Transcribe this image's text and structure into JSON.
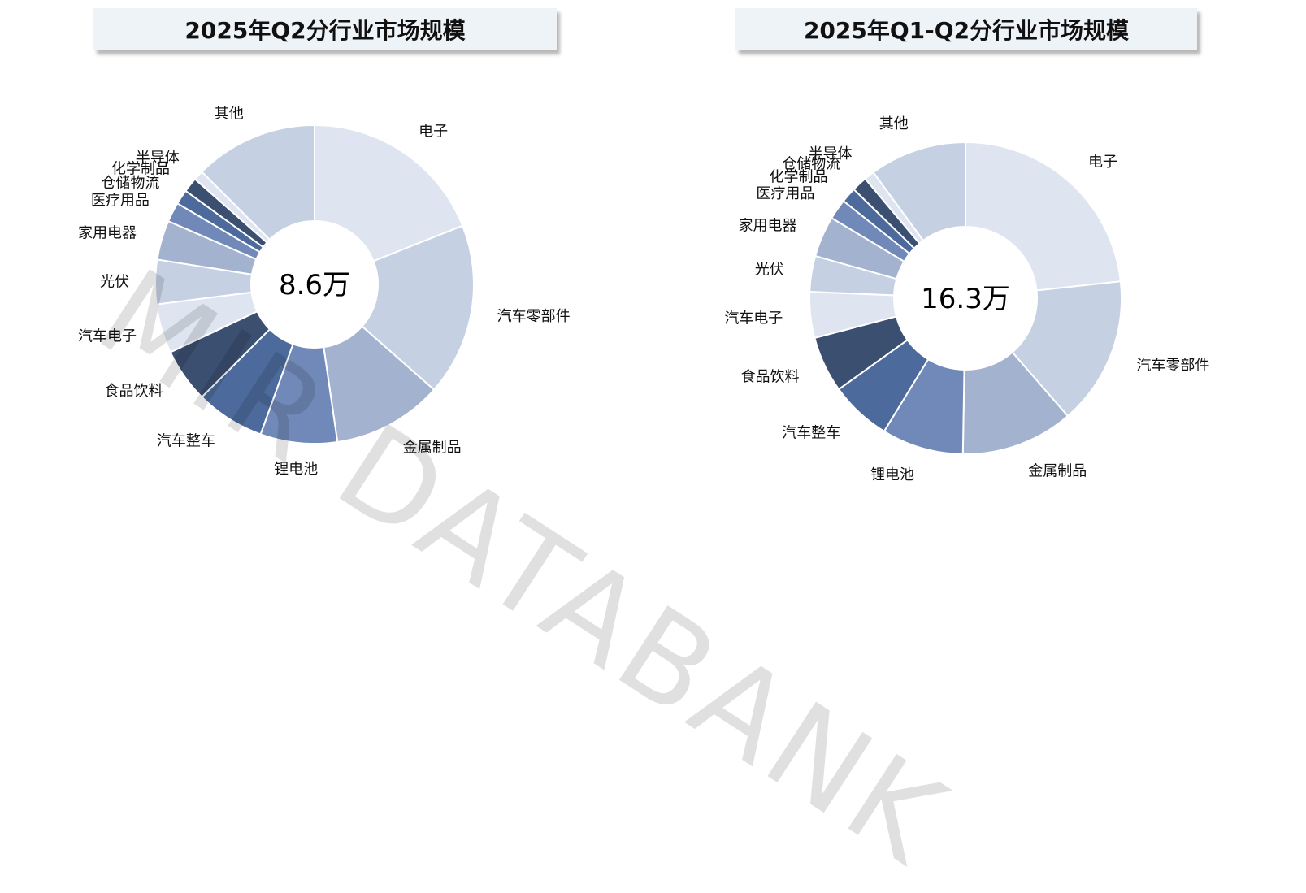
{
  "chart_data": [
    {
      "type": "pie",
      "title": "2025年Q2分行业市场规模",
      "center_label": "8.6万",
      "categories": [
        "电子",
        "汽车零部件",
        "金属制品",
        "锂电池",
        "汽车整车",
        "食品饮料",
        "汽车电子",
        "光伏",
        "家用电器",
        "医疗用品",
        "仓储物流",
        "化学制品",
        "半导体",
        "其他"
      ],
      "values": [
        19.0,
        17.5,
        11.2,
        7.8,
        7.0,
        5.5,
        5.0,
        4.5,
        4.0,
        2.0,
        1.5,
        1.5,
        1.0,
        12.5
      ],
      "colors": [
        "#dfe5f0",
        "#c5d0e2",
        "#a3b2cf",
        "#7089b8",
        "#4d6a9c",
        "#3b4f70",
        "#dfe5f0",
        "#c5d0e2",
        "#a3b2cf",
        "#7089b8",
        "#4d6a9c",
        "#3b4f70",
        "#dfe5f0",
        "#c5d0e2"
      ]
    },
    {
      "type": "pie",
      "title": "2025年Q1-Q2分行业市场规模",
      "center_label": "16.3万",
      "categories": [
        "电子",
        "汽车零部件",
        "金属制品",
        "锂电池",
        "汽车整车",
        "食品饮料",
        "汽车电子",
        "光伏",
        "家用电器",
        "医疗用品",
        "化学制品",
        "仓储物流",
        "半导体",
        "其他"
      ],
      "values": [
        22.0,
        14.5,
        11.0,
        8.0,
        6.0,
        5.5,
        4.5,
        3.5,
        4.0,
        2.0,
        1.5,
        1.5,
        1.0,
        9.5
      ],
      "colors": [
        "#dfe5f0",
        "#c5d0e2",
        "#a3b2cf",
        "#7089b8",
        "#4d6a9c",
        "#3b4f70",
        "#dfe5f0",
        "#c5d0e2",
        "#a3b2cf",
        "#7089b8",
        "#4d6a9c",
        "#3b4f70",
        "#dfe5f0",
        "#c5d0e2"
      ]
    }
  ],
  "watermark": "MIR DATABANK"
}
